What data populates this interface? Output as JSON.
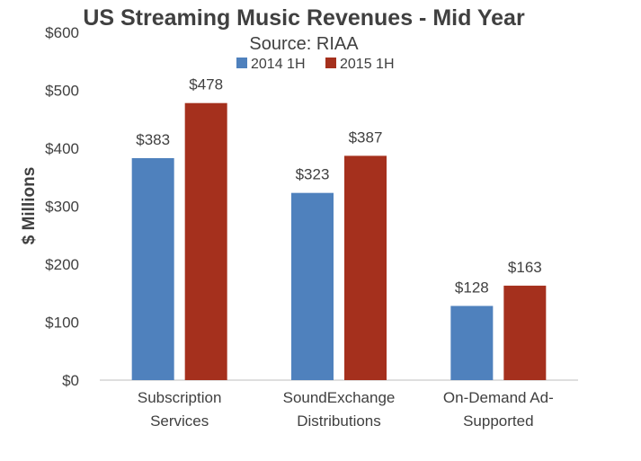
{
  "chart_data": {
    "type": "bar",
    "title": "US Streaming Music Revenues - Mid Year",
    "subtitle": "Source: RIAA",
    "ylabel": "$ Millions",
    "xlabel": "",
    "ylim": [
      0,
      600
    ],
    "yticks": [
      "$0",
      "$100",
      "$200",
      "$300",
      "$400",
      "$500",
      "$600"
    ],
    "grid": false,
    "legend_position": "top",
    "categories": [
      [
        "Subscription",
        "Services"
      ],
      [
        "SoundExchange",
        "Distributions"
      ],
      [
        "On-Demand Ad-",
        "Supported"
      ]
    ],
    "series": [
      {
        "name": "2014 1H",
        "color": "#4f81bd",
        "values": [
          383,
          323,
          128
        ],
        "labels": [
          "$383",
          "$323",
          "$128"
        ]
      },
      {
        "name": "2015 1H",
        "color": "#a5301d",
        "values": [
          478,
          387,
          163
        ],
        "labels": [
          "$478",
          "$387",
          "$163"
        ]
      }
    ]
  }
}
